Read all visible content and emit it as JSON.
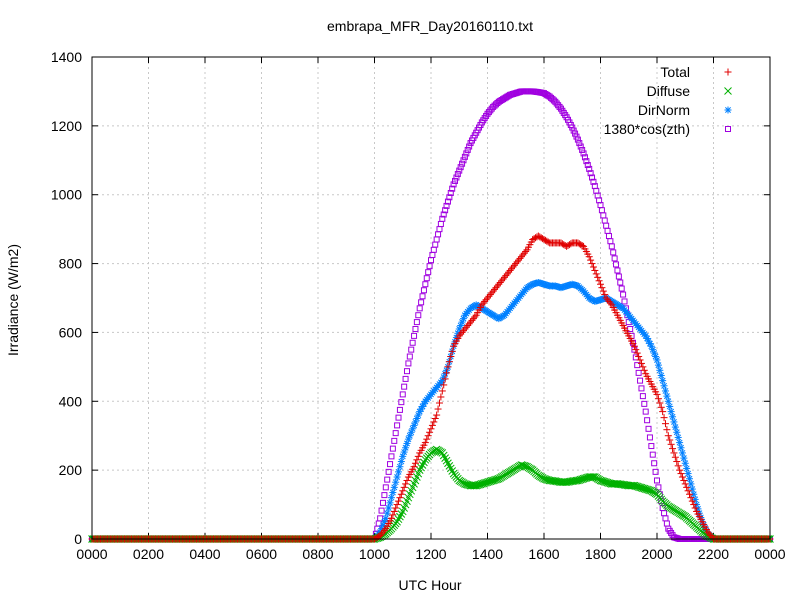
{
  "chart_data": {
    "type": "scatter",
    "title": "embrapa_MFR_Day20160110.txt",
    "xlabel": "UTC Hour",
    "ylabel": "Irradiance (W/m2)",
    "xlim": [
      0,
      24
    ],
    "ylim": [
      0,
      1400
    ],
    "x_ticks": [
      0,
      2,
      4,
      6,
      8,
      10,
      12,
      14,
      16,
      18,
      20,
      22,
      24
    ],
    "x_tick_labels": [
      "0000",
      "0200",
      "0400",
      "0600",
      "0800",
      "1000",
      "1200",
      "1400",
      "1600",
      "1800",
      "2000",
      "2200",
      "0000"
    ],
    "y_ticks": [
      0,
      200,
      400,
      600,
      800,
      1000,
      1200,
      1400
    ],
    "y_tick_labels": [
      "0",
      "200",
      "400",
      "600",
      "800",
      "1000",
      "1200",
      "1400"
    ],
    "grid": true,
    "legend_position": "top-right",
    "series": [
      {
        "name": "Total",
        "marker": "+",
        "color": "#e00000",
        "x": [
          0,
          10.0,
          10.2,
          10.4,
          10.6,
          10.8,
          11.0,
          11.2,
          11.4,
          11.6,
          11.8,
          12.0,
          12.2,
          12.4,
          12.6,
          12.8,
          13.0,
          13.2,
          13.4,
          13.6,
          13.8,
          14.0,
          14.2,
          14.4,
          14.6,
          14.8,
          15.0,
          15.2,
          15.4,
          15.6,
          15.8,
          16.0,
          16.2,
          16.4,
          16.6,
          16.8,
          17.0,
          17.2,
          17.4,
          17.6,
          17.8,
          18.0,
          18.2,
          18.4,
          18.6,
          18.8,
          19.0,
          19.2,
          19.4,
          19.6,
          19.8,
          20.0,
          20.2,
          20.4,
          20.6,
          20.8,
          21.0,
          21.2,
          21.4,
          21.6,
          21.8,
          22.0,
          22.2,
          24
        ],
        "y": [
          0,
          0,
          10,
          30,
          60,
          100,
          140,
          180,
          210,
          250,
          280,
          320,
          360,
          430,
          500,
          560,
          590,
          610,
          630,
          650,
          680,
          700,
          720,
          740,
          760,
          780,
          800,
          820,
          840,
          870,
          880,
          870,
          860,
          860,
          860,
          850,
          860,
          860,
          850,
          820,
          780,
          740,
          700,
          680,
          650,
          620,
          590,
          560,
          520,
          480,
          450,
          420,
          370,
          300,
          250,
          200,
          160,
          120,
          80,
          50,
          20,
          0,
          0,
          0
        ]
      },
      {
        "name": "Diffuse",
        "marker": "x",
        "color": "#00b000",
        "x": [
          0,
          10.0,
          10.2,
          10.4,
          10.6,
          10.8,
          11.0,
          11.2,
          11.4,
          11.6,
          11.8,
          12.0,
          12.2,
          12.4,
          12.6,
          12.8,
          13.0,
          13.2,
          13.4,
          13.6,
          13.8,
          14.0,
          14.2,
          14.4,
          14.6,
          14.8,
          15.0,
          15.2,
          15.4,
          15.6,
          15.8,
          16.0,
          16.2,
          16.4,
          16.6,
          16.8,
          17.0,
          17.2,
          17.4,
          17.6,
          17.8,
          18.0,
          18.2,
          18.4,
          18.6,
          18.8,
          19.0,
          19.2,
          19.4,
          19.6,
          19.8,
          20.0,
          20.2,
          20.4,
          20.6,
          20.8,
          21.0,
          21.2,
          21.4,
          21.6,
          21.8,
          22.0,
          22.2,
          24
        ],
        "y": [
          0,
          0,
          5,
          15,
          30,
          50,
          80,
          120,
          160,
          200,
          230,
          250,
          260,
          250,
          220,
          190,
          170,
          160,
          155,
          155,
          160,
          165,
          170,
          175,
          185,
          195,
          205,
          215,
          210,
          200,
          185,
          175,
          170,
          168,
          165,
          165,
          168,
          170,
          175,
          180,
          180,
          170,
          165,
          160,
          160,
          158,
          155,
          155,
          150,
          145,
          140,
          130,
          110,
          95,
          85,
          75,
          65,
          50,
          35,
          20,
          8,
          0,
          0,
          0
        ]
      },
      {
        "name": "DirNorm",
        "marker": "*",
        "color": "#0080ff",
        "x": [
          0,
          10.0,
          10.2,
          10.4,
          10.6,
          10.8,
          11.0,
          11.2,
          11.4,
          11.6,
          11.8,
          12.0,
          12.2,
          12.4,
          12.6,
          12.8,
          13.0,
          13.2,
          13.4,
          13.6,
          13.8,
          14.0,
          14.2,
          14.4,
          14.6,
          14.8,
          15.0,
          15.2,
          15.4,
          15.6,
          15.8,
          16.0,
          16.2,
          16.4,
          16.6,
          16.8,
          17.0,
          17.2,
          17.4,
          17.6,
          17.8,
          18.0,
          18.2,
          18.4,
          18.6,
          18.8,
          19.0,
          19.2,
          19.4,
          19.6,
          19.8,
          20.0,
          20.2,
          20.4,
          20.6,
          20.8,
          21.0,
          21.2,
          21.4,
          21.6,
          21.8,
          22.0,
          22.2,
          24
        ],
        "y": [
          0,
          0,
          20,
          60,
          120,
          180,
          240,
          290,
          330,
          370,
          400,
          420,
          440,
          460,
          500,
          560,
          610,
          650,
          670,
          680,
          670,
          660,
          650,
          640,
          650,
          670,
          690,
          710,
          730,
          740,
          745,
          740,
          735,
          735,
          730,
          735,
          740,
          735,
          720,
          700,
          690,
          695,
          700,
          690,
          680,
          670,
          650,
          630,
          610,
          590,
          560,
          520,
          460,
          400,
          340,
          280,
          220,
          160,
          100,
          50,
          15,
          0,
          0,
          0
        ]
      },
      {
        "name": "1380*cos(zth)",
        "marker": "square",
        "color": "#a000e0",
        "x": [
          0,
          10.0,
          10.2,
          10.4,
          10.6,
          10.8,
          11.0,
          11.2,
          11.4,
          11.6,
          11.8,
          12.0,
          12.2,
          12.4,
          12.6,
          12.8,
          13.0,
          13.2,
          13.4,
          13.6,
          13.8,
          14.0,
          14.2,
          14.4,
          14.6,
          14.8,
          15.0,
          15.2,
          15.4,
          15.6,
          15.8,
          16.0,
          16.2,
          16.4,
          16.6,
          16.8,
          17.0,
          17.2,
          17.4,
          17.6,
          17.8,
          18.0,
          18.2,
          18.4,
          18.6,
          18.8,
          19.0,
          19.2,
          19.4,
          19.6,
          19.8,
          20.0,
          20.2,
          20.4,
          20.6,
          20.8,
          21.0,
          21.2,
          21.4,
          21.6,
          21.8,
          22.0,
          22.2,
          24
        ],
        "y": [
          0,
          0,
          60,
          150,
          240,
          330,
          420,
          510,
          590,
          670,
          740,
          810,
          870,
          930,
          980,
          1030,
          1070,
          1110,
          1150,
          1180,
          1210,
          1235,
          1255,
          1270,
          1280,
          1290,
          1295,
          1300,
          1300,
          1300,
          1298,
          1295,
          1285,
          1270,
          1250,
          1225,
          1195,
          1160,
          1120,
          1075,
          1025,
          970,
          910,
          850,
          780,
          710,
          630,
          550,
          460,
          370,
          270,
          170,
          90,
          30,
          5,
          0,
          0,
          0,
          0,
          0,
          0,
          0,
          0,
          0
        ]
      }
    ]
  }
}
